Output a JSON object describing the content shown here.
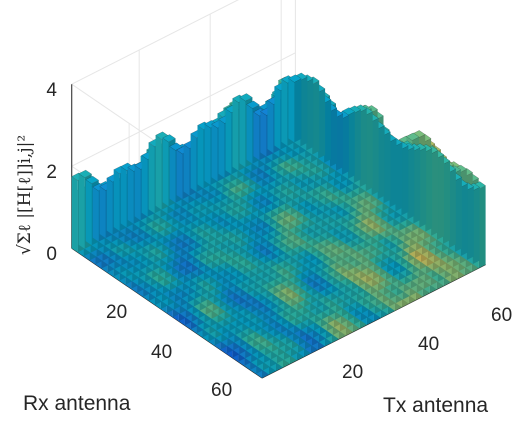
{
  "chart_data": {
    "type": "bar3",
    "title": "",
    "xlabel": "Tx antenna",
    "ylabel": "Rx antenna",
    "zlabel": "√Σℓ |[H[ℓ]]i,j|²",
    "x_ticks": [
      "20",
      "40",
      "60"
    ],
    "y_ticks": [
      "20",
      "40",
      "60"
    ],
    "z_ticks": [
      "0",
      "2",
      "4"
    ],
    "x_range": [
      1,
      64
    ],
    "y_range": [
      1,
      64
    ],
    "z_range": [
      0,
      4
    ],
    "grid": true,
    "colormap": "parula",
    "colormap_stops": [
      "#352a87",
      "#0f5cdd",
      "#1481d6",
      "#06a4ca",
      "#2eb7a4",
      "#87bf77",
      "#d1bb59",
      "#fec832",
      "#f9fb0e"
    ],
    "grid_color": "#e6e6e6",
    "edge_color": "#1a1a1a",
    "tx_profile": [
      0.2,
      0.55,
      1.0,
      0.7,
      0.35,
      0.8,
      1.2,
      1.0,
      0.6,
      0.9,
      1.4,
      1.3,
      0.9,
      1.1,
      1.5,
      1.2,
      0.9
    ],
    "rx_profile": [
      1.0,
      0.85,
      0.6,
      0.7,
      0.75,
      0.55,
      0.45,
      0.5,
      0.4,
      0.3,
      0.25,
      0.2,
      0.15,
      0.1,
      0.1,
      0.05,
      0.0
    ]
  }
}
